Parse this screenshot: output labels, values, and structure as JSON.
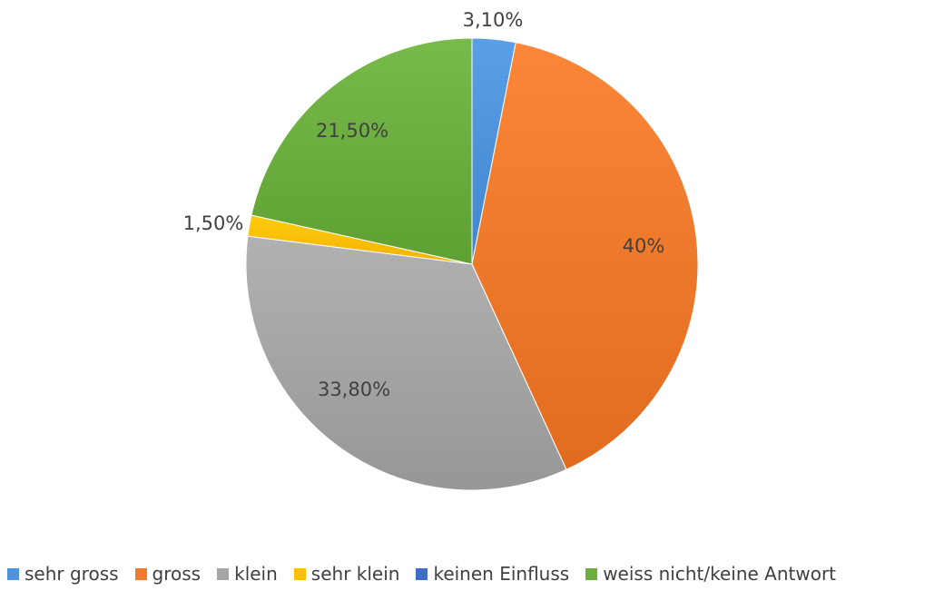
{
  "chart_data": {
    "type": "pie",
    "categories": [
      "sehr gross",
      "gross",
      "klein",
      "sehr klein",
      "keinen Einfluss",
      "weiss nicht/keine Antwort"
    ],
    "values": [
      3.1,
      40,
      33.8,
      1.5,
      0,
      21.5
    ],
    "data_labels": [
      "3,10%",
      "40%",
      "33,80%",
      "1,50%",
      "",
      "21,50%"
    ],
    "colors": [
      "#4E93DC",
      "#F07A2C",
      "#A5A5A5",
      "#FFC000",
      "#3F6CC4",
      "#6CAE3F"
    ],
    "legend_position": "bottom",
    "title": ""
  }
}
